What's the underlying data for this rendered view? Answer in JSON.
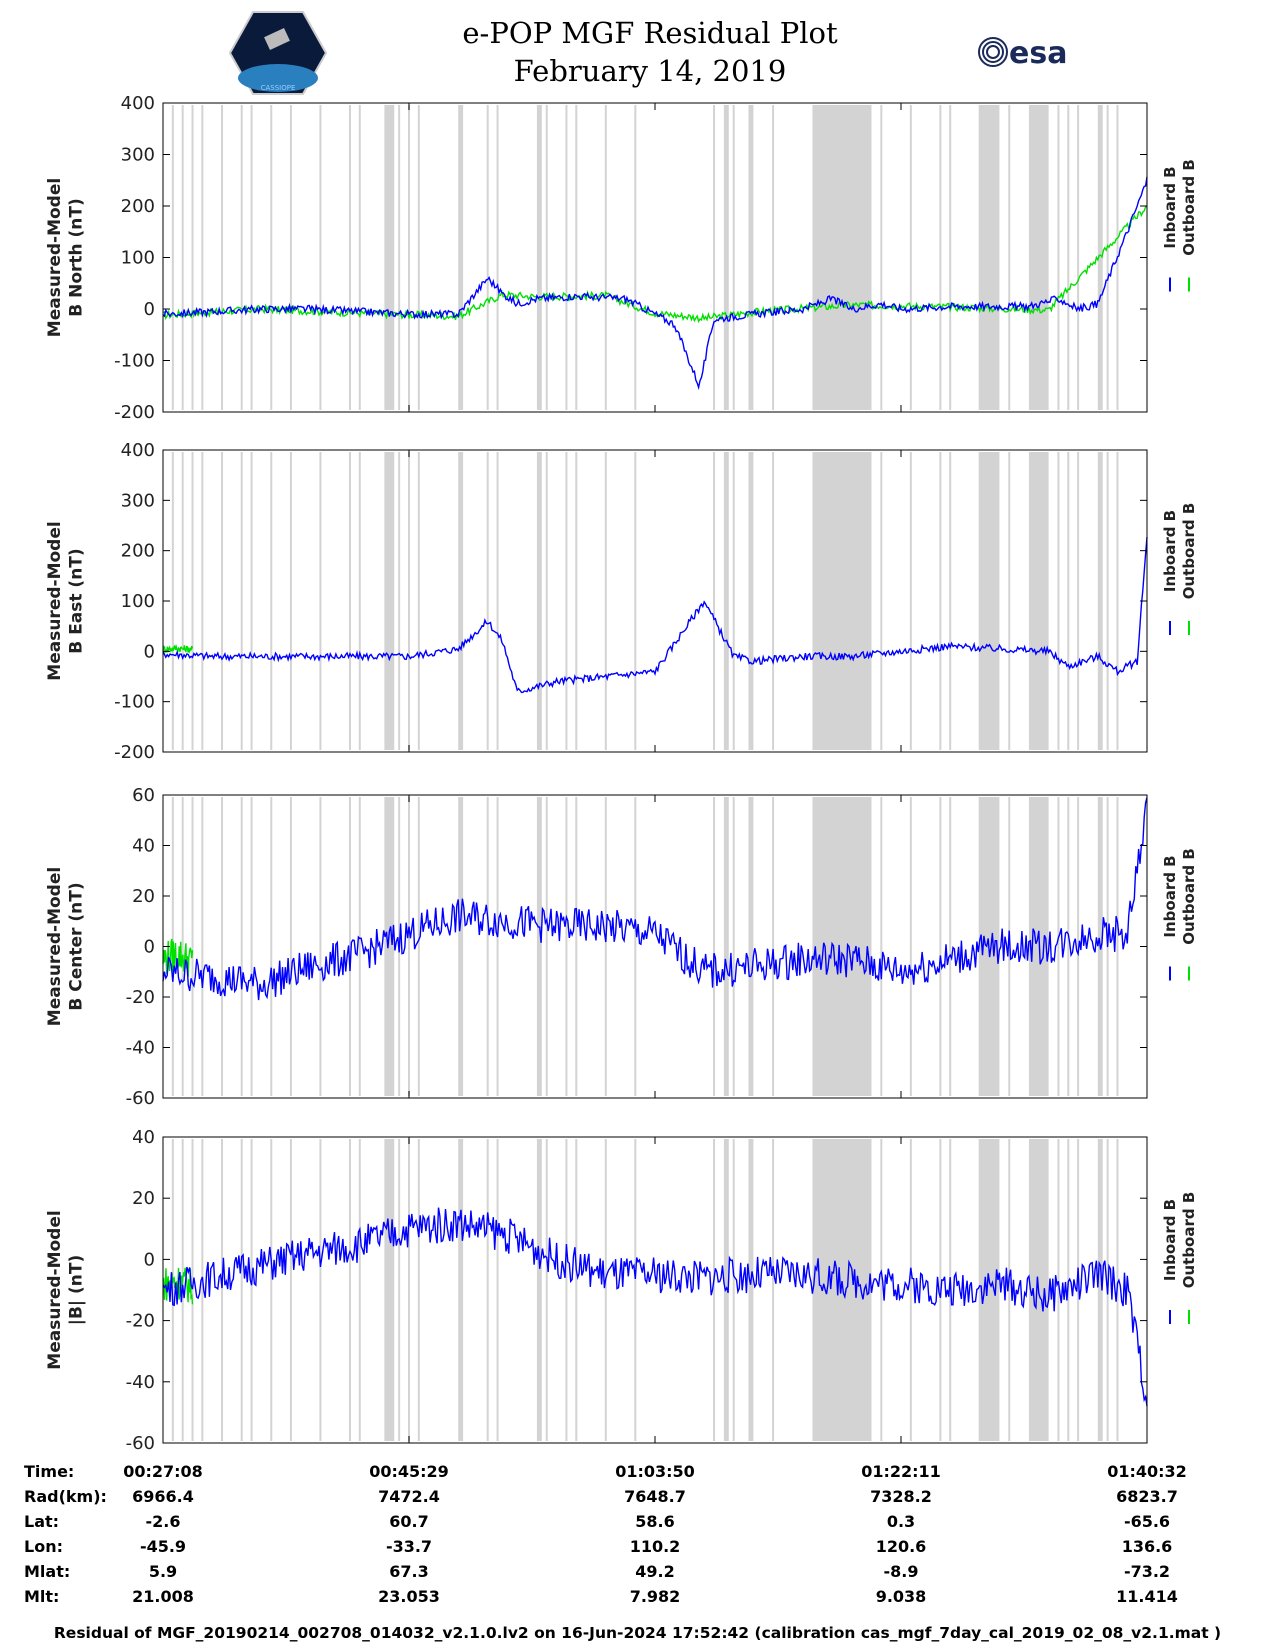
{
  "header": {
    "title_line1": "e-POP MGF Residual Plot",
    "title_line2": "February 14, 2019",
    "logo_left": "CASSIOPE",
    "logo_right": "esa"
  },
  "colors": {
    "inboard": "#0000ff",
    "outboard": "#00e000",
    "shade": "#d3d3d3"
  },
  "chart_data": [
    {
      "type": "line",
      "ylabel": [
        "Measured-Model",
        "B North (nT)"
      ],
      "ylim": [
        -200,
        400
      ],
      "yticks": [
        -200,
        -100,
        0,
        100,
        200,
        300,
        400
      ],
      "legend": [
        "Inboard B",
        "Outboard B"
      ],
      "series": [
        {
          "name": "Inboard B",
          "x": [
            0,
            0.02,
            0.05,
            0.1,
            0.15,
            0.2,
            0.25,
            0.3,
            0.33,
            0.345,
            0.36,
            0.38,
            0.42,
            0.47,
            0.5,
            0.52,
            0.545,
            0.56,
            0.6,
            0.65,
            0.68,
            0.7,
            0.73,
            0.75,
            0.8,
            0.85,
            0.88,
            0.9,
            0.91,
            0.93,
            0.95,
            0.98,
            1.0
          ],
          "y": [
            -10,
            -8,
            -5,
            0,
            0,
            -5,
            -10,
            -10,
            60,
            30,
            10,
            20,
            25,
            20,
            -10,
            -30,
            -150,
            -20,
            -10,
            0,
            20,
            0,
            10,
            0,
            5,
            5,
            5,
            15,
            20,
            0,
            10,
            150,
            250
          ]
        },
        {
          "name": "Outboard B",
          "x": [
            0,
            0.05,
            0.1,
            0.2,
            0.3,
            0.345,
            0.38,
            0.45,
            0.5,
            0.55,
            0.6,
            0.7,
            0.8,
            0.9,
            1.0
          ],
          "y": [
            -12,
            -6,
            0,
            -8,
            -14,
            28,
            24,
            26,
            -8,
            -18,
            -6,
            8,
            4,
            -2,
            200
          ]
        }
      ]
    },
    {
      "type": "line",
      "ylabel": [
        "Measured-Model",
        "B East (nT)"
      ],
      "ylim": [
        -200,
        400
      ],
      "yticks": [
        -200,
        -100,
        0,
        100,
        200,
        300,
        400
      ],
      "legend": [
        "Inboard B",
        "Outboard B"
      ],
      "series": [
        {
          "name": "Inboard B",
          "x": [
            0,
            0.05,
            0.1,
            0.2,
            0.25,
            0.3,
            0.33,
            0.345,
            0.36,
            0.38,
            0.4,
            0.45,
            0.5,
            0.55,
            0.58,
            0.6,
            0.65,
            0.7,
            0.75,
            0.8,
            0.85,
            0.9,
            0.92,
            0.95,
            0.97,
            0.99,
            1.0
          ],
          "y": [
            -5,
            -10,
            -10,
            -10,
            -10,
            5,
            60,
            20,
            -80,
            -70,
            -60,
            -50,
            -40,
            100,
            -10,
            -20,
            -10,
            -10,
            0,
            10,
            5,
            0,
            -30,
            -10,
            -40,
            -20,
            230
          ]
        },
        {
          "name": "Outboard B",
          "x": [
            0,
            0.015,
            0.03
          ],
          "y": [
            5,
            6,
            4
          ]
        }
      ]
    },
    {
      "type": "line",
      "ylabel": [
        "Measured-Model",
        "B Center (nT)"
      ],
      "ylim": [
        -60,
        60
      ],
      "yticks": [
        -60,
        -40,
        -20,
        0,
        20,
        40,
        60
      ],
      "legend": [
        "Inboard B",
        "Outboard B"
      ],
      "series": [
        {
          "name": "Inboard B",
          "x": [
            0,
            0.05,
            0.1,
            0.15,
            0.2,
            0.25,
            0.3,
            0.35,
            0.4,
            0.45,
            0.5,
            0.55,
            0.6,
            0.65,
            0.7,
            0.75,
            0.8,
            0.85,
            0.9,
            0.95,
            0.98,
            1.0
          ],
          "y": [
            -10,
            -12,
            -15,
            -8,
            -3,
            5,
            12,
            10,
            8,
            8,
            5,
            -10,
            -8,
            -5,
            -5,
            -10,
            -5,
            0,
            0,
            5,
            5,
            55
          ]
        },
        {
          "name": "Outboard B",
          "x": [
            0,
            0.015,
            0.03
          ],
          "y": [
            -5,
            -3,
            -6
          ]
        }
      ]
    },
    {
      "type": "line",
      "ylabel": [
        "Measured-Model",
        "|B| (nT)"
      ],
      "ylim": [
        -60,
        40
      ],
      "yticks": [
        -60,
        -40,
        -20,
        0,
        20,
        40
      ],
      "legend": [
        "Inboard B",
        "Outboard B"
      ],
      "series": [
        {
          "name": "Inboard B",
          "x": [
            0,
            0.05,
            0.1,
            0.15,
            0.2,
            0.25,
            0.3,
            0.35,
            0.4,
            0.45,
            0.5,
            0.55,
            0.6,
            0.65,
            0.7,
            0.75,
            0.8,
            0.85,
            0.9,
            0.95,
            0.98,
            1.0
          ],
          "y": [
            -10,
            -6,
            -2,
            2,
            5,
            10,
            12,
            8,
            0,
            -5,
            -5,
            -6,
            -5,
            -5,
            -7,
            -8,
            -10,
            -8,
            -12,
            -5,
            -10,
            -45
          ]
        },
        {
          "name": "Outboard B",
          "x": [
            0,
            0.015,
            0.03
          ],
          "y": [
            -8,
            -7,
            -9
          ]
        }
      ]
    }
  ],
  "shaded_intervals": [
    [
      0.225,
      0.235
    ],
    [
      0.3,
      0.305
    ],
    [
      0.38,
      0.385
    ],
    [
      0.57,
      0.575
    ],
    [
      0.595,
      0.6
    ],
    [
      0.66,
      0.72
    ],
    [
      0.83,
      0.85
    ],
    [
      0.88,
      0.9
    ],
    [
      0.95,
      0.955
    ]
  ],
  "thin_lines": [
    0.01,
    0.02,
    0.03,
    0.04,
    0.06,
    0.08,
    0.09,
    0.11,
    0.13,
    0.16,
    0.19,
    0.2,
    0.24,
    0.25,
    0.26,
    0.33,
    0.34,
    0.39,
    0.41,
    0.42,
    0.45,
    0.48,
    0.56,
    0.58,
    0.62,
    0.7,
    0.73,
    0.76,
    0.79,
    0.8,
    0.83,
    0.86,
    0.91,
    0.92,
    0.93,
    0.96,
    0.97
  ],
  "x_axis": {
    "rows": [
      {
        "label": "Time:",
        "values": [
          "00:27:08",
          "00:45:29",
          "01:03:50",
          "01:22:11",
          "01:40:32"
        ]
      },
      {
        "label": "Rad(km):",
        "values": [
          "6966.4",
          "7472.4",
          "7648.7",
          "7328.2",
          "6823.7"
        ]
      },
      {
        "label": "Lat:",
        "values": [
          "-2.6",
          "60.7",
          "58.6",
          "0.3",
          "-65.6"
        ]
      },
      {
        "label": "Lon:",
        "values": [
          "-45.9",
          "-33.7",
          "110.2",
          "120.6",
          "136.6"
        ]
      },
      {
        "label": "Mlat:",
        "values": [
          "5.9",
          "67.3",
          "49.2",
          "-8.9",
          "-73.2"
        ]
      },
      {
        "label": "Mlt:",
        "values": [
          "21.008",
          "23.053",
          "7.982",
          "9.038",
          "11.414"
        ]
      }
    ]
  },
  "footnote": "Residual of MGF_20190214_002708_014032_v2.1.0.lv2 on 16-Jun-2024 17:52:42 (calibration cas_mgf_7day_cal_2019_02_08_v2.1.mat )"
}
